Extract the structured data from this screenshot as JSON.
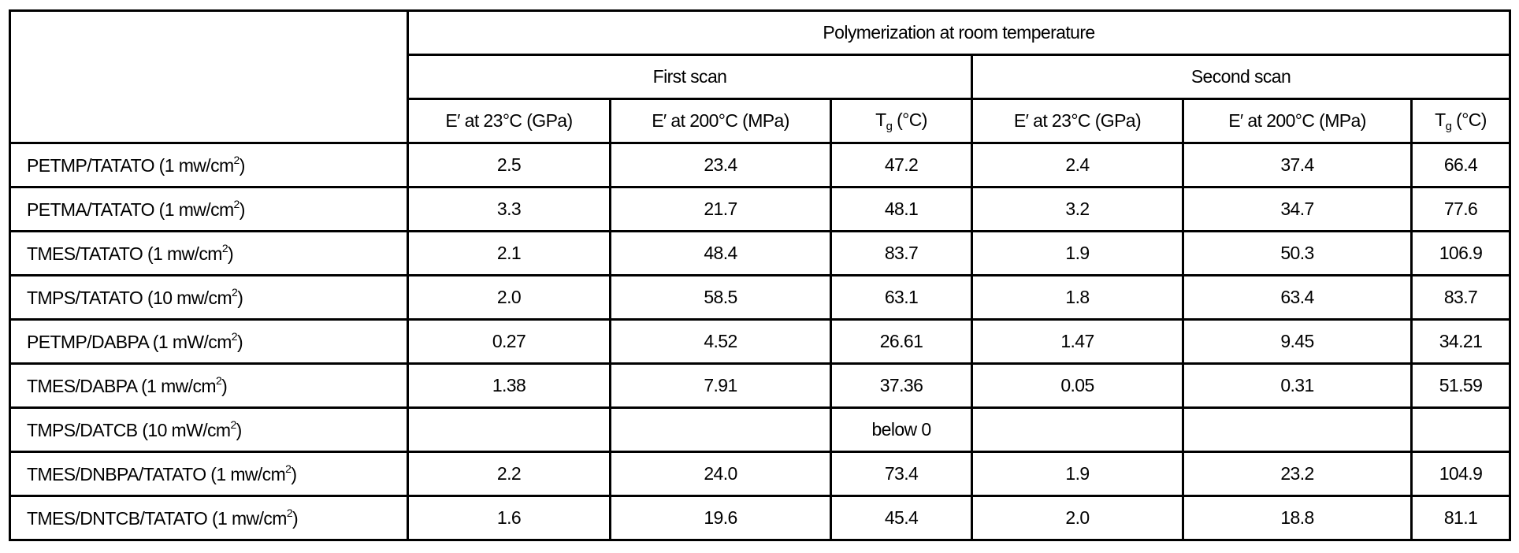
{
  "table": {
    "group_header": "Polymerization at room temperature",
    "scan_headers": [
      "First scan",
      "Second scan"
    ],
    "columns": [
      {
        "main": "E′ at 23°C (GPa)",
        "sub": "",
        "tail": ""
      },
      {
        "main": "E′ at 200°C (MPa)",
        "sub": "",
        "tail": ""
      },
      {
        "main": "T",
        "sub": "g",
        "tail": " (°C)"
      },
      {
        "main": "E′ at 23°C (GPa)",
        "sub": "",
        "tail": ""
      },
      {
        "main": "E′ at 200°C (MPa)",
        "sub": "",
        "tail": ""
      },
      {
        "main": "T",
        "sub": "g",
        "tail": " (°C)"
      }
    ],
    "rows": [
      {
        "label": "PETMP/TATATO (1 mw/cm",
        "sup": "2",
        "close": ")",
        "values": [
          "2.5",
          "23.4",
          "47.2",
          "2.4",
          "37.4",
          "66.4"
        ]
      },
      {
        "label": "PETMA/TATATO (1 mw/cm",
        "sup": "2",
        "close": ")",
        "values": [
          "3.3",
          "21.7",
          "48.1",
          "3.2",
          "34.7",
          "77.6"
        ]
      },
      {
        "label": "TMES/TATATO (1 mw/cm",
        "sup": "2",
        "close": ")",
        "values": [
          "2.1",
          "48.4",
          "83.7",
          "1.9",
          "50.3",
          "106.9"
        ]
      },
      {
        "label": "TMPS/TATATO (10 mw/cm",
        "sup": "2",
        "close": ")",
        "values": [
          "2.0",
          "58.5",
          "63.1",
          "1.8",
          "63.4",
          "83.7"
        ]
      },
      {
        "label": "PETMP/DABPA (1 mW/cm",
        "sup": "2",
        "close": ")",
        "values": [
          "0.27",
          "4.52",
          "26.61",
          "1.47",
          "9.45",
          "34.21"
        ]
      },
      {
        "label": "TMES/DABPA (1 mw/cm",
        "sup": "2",
        "close": ")",
        "values": [
          "1.38",
          "7.91",
          "37.36",
          "0.05",
          "0.31",
          "51.59"
        ]
      },
      {
        "label": "TMPS/DATCB (10 mW/cm",
        "sup": "2",
        "close": ")",
        "values": [
          "",
          "",
          "below 0",
          "",
          "",
          ""
        ]
      },
      {
        "label": "TMES/DNBPA/TATATO (1 mw/cm",
        "sup": "2",
        "close": ")",
        "values": [
          "2.2",
          "24.0",
          "73.4",
          "1.9",
          "23.2",
          "104.9"
        ]
      },
      {
        "label": "TMES/DNTCB/TATATO (1 mw/cm",
        "sup": "2",
        "close": ")",
        "values": [
          "1.6",
          "19.6",
          "45.4",
          "2.0",
          "18.8",
          "81.1"
        ]
      }
    ]
  }
}
